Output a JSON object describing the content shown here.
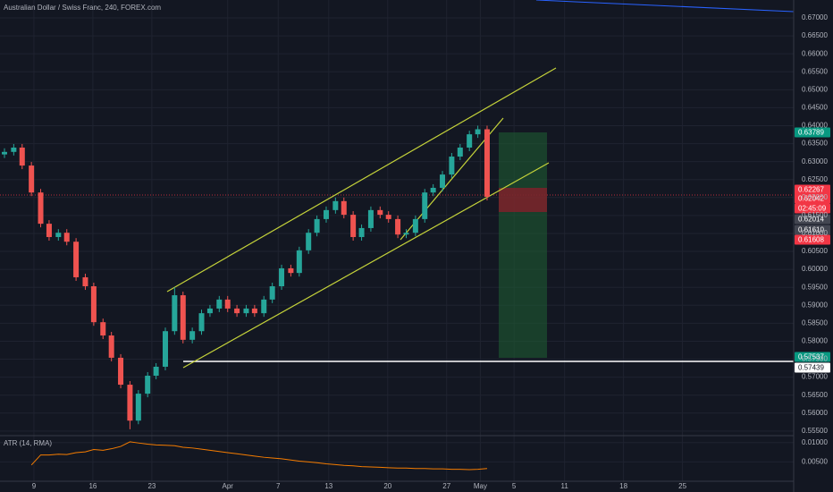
{
  "chart_data": {
    "type": "candlestick",
    "title": "Australian Dollar / Swiss Franc, 240, FOREX.com",
    "up_color": "#26a69a",
    "down_color": "#ef5350",
    "grid": true,
    "x": [
      5.5,
      6.6,
      7.6,
      8.7,
      9.8,
      10.8,
      11.9,
      12.9,
      14.0,
      15.1,
      16.1,
      17.2,
      18.2,
      19.3,
      20.4,
      21.4,
      22.5,
      23.5,
      24.6,
      25.7,
      26.7,
      27.8,
      28.9,
      29.9,
      31.0,
      32.0,
      33.1,
      34.2,
      35.2,
      36.3,
      37.3,
      38.4,
      39.5,
      40.5,
      41.6,
      42.6,
      43.7,
      44.8,
      45.8,
      46.9,
      47.9,
      49.0,
      50.1,
      51.1,
      52.2,
      53.2,
      54.3,
      55.4,
      56.4,
      57.5,
      58.6,
      59.6,
      60.7,
      61.7,
      62.8
    ],
    "open": [
      0.632,
      0.6327,
      0.6339,
      0.6289,
      0.6214,
      0.6127,
      0.609,
      0.6102,
      0.6077,
      0.5978,
      0.5953,
      0.5853,
      0.5816,
      0.5754,
      0.5679,
      0.5579,
      0.5654,
      0.5704,
      0.5729,
      0.5828,
      0.5928,
      0.5804,
      0.5828,
      0.5878,
      0.5891,
      0.5916,
      0.5891,
      0.5878,
      0.5891,
      0.5878,
      0.5916,
      0.5953,
      0.6003,
      0.599,
      0.6053,
      0.6102,
      0.614,
      0.6165,
      0.619,
      0.6152,
      0.609,
      0.6115,
      0.6165,
      0.6152,
      0.614,
      0.6097,
      0.6102,
      0.614,
      0.6214,
      0.6227,
      0.6264,
      0.6314,
      0.6339,
      0.6376,
      0.639
    ],
    "high": [
      0.6337,
      0.6349,
      0.6349,
      0.6299,
      0.6224,
      0.6137,
      0.6112,
      0.6112,
      0.6087,
      0.5988,
      0.5963,
      0.5863,
      0.5826,
      0.5764,
      0.5689,
      0.5664,
      0.5714,
      0.5739,
      0.5838,
      0.595,
      0.5938,
      0.5838,
      0.5888,
      0.5901,
      0.5926,
      0.5926,
      0.5901,
      0.5901,
      0.5901,
      0.5926,
      0.5963,
      0.6013,
      0.6013,
      0.6063,
      0.6112,
      0.615,
      0.6175,
      0.62,
      0.62,
      0.6162,
      0.6125,
      0.6175,
      0.6175,
      0.6162,
      0.615,
      0.6112,
      0.615,
      0.6224,
      0.6237,
      0.6274,
      0.6324,
      0.6349,
      0.6386,
      0.64,
      0.64
    ],
    "low": [
      0.631,
      0.6317,
      0.6279,
      0.6204,
      0.6117,
      0.608,
      0.608,
      0.6067,
      0.5968,
      0.5943,
      0.5843,
      0.5806,
      0.5744,
      0.5669,
      0.5555,
      0.5569,
      0.5644,
      0.5694,
      0.5719,
      0.5818,
      0.5794,
      0.5794,
      0.5818,
      0.5868,
      0.5881,
      0.5881,
      0.5868,
      0.5868,
      0.5868,
      0.5868,
      0.5906,
      0.5943,
      0.598,
      0.598,
      0.6043,
      0.6092,
      0.613,
      0.6155,
      0.6142,
      0.608,
      0.608,
      0.6105,
      0.6142,
      0.613,
      0.6087,
      0.6087,
      0.6092,
      0.613,
      0.6204,
      0.6217,
      0.6254,
      0.6304,
      0.6329,
      0.6366,
      0.6192
    ],
    "close": [
      0.6327,
      0.6339,
      0.6289,
      0.6214,
      0.6127,
      0.609,
      0.6102,
      0.6077,
      0.5978,
      0.5953,
      0.5853,
      0.5816,
      0.5754,
      0.5679,
      0.5579,
      0.5654,
      0.5704,
      0.5729,
      0.5828,
      0.5928,
      0.5804,
      0.5828,
      0.5878,
      0.5891,
      0.5916,
      0.5891,
      0.5878,
      0.5891,
      0.5878,
      0.5916,
      0.5953,
      0.6003,
      0.599,
      0.6053,
      0.6102,
      0.614,
      0.6165,
      0.619,
      0.6152,
      0.609,
      0.6115,
      0.6165,
      0.6152,
      0.614,
      0.6097,
      0.6102,
      0.614,
      0.6214,
      0.6227,
      0.6264,
      0.6314,
      0.6339,
      0.6376,
      0.639,
      0.6202
    ],
    "xlim": [
      4.97,
      99.2
    ],
    "xticks": [
      9,
      16,
      23,
      {
        "value": 32,
        "label": "Apr"
      },
      {
        "value": 38,
        "label": "7"
      },
      {
        "value": 44,
        "label": "13"
      },
      {
        "value": 51,
        "label": "20"
      },
      {
        "value": 58,
        "label": "27"
      },
      {
        "value": 62,
        "label": "May"
      },
      {
        "value": 66,
        "label": "5"
      },
      {
        "value": 72,
        "label": "11"
      },
      {
        "value": 79,
        "label": "18"
      },
      {
        "value": 86,
        "label": "25"
      }
    ],
    "ylim": [
      0.55372,
      0.67498
    ],
    "yticks": [
      {
        "value": 0.555,
        "label": "0.55500"
      },
      {
        "value": 0.56,
        "label": "0.56000"
      },
      {
        "value": 0.565,
        "label": "0.56500"
      },
      {
        "value": 0.57,
        "label": "0.57000"
      },
      {
        "value": 0.575,
        "label": "0.57500"
      },
      {
        "value": 0.58,
        "label": "0.58000"
      },
      {
        "value": 0.585,
        "label": "0.58500"
      },
      {
        "value": 0.59,
        "label": "0.59000"
      },
      {
        "value": 0.595,
        "label": "0.59500"
      },
      {
        "value": 0.6,
        "label": "0.60000"
      },
      {
        "value": 0.605,
        "label": "0.60500"
      },
      {
        "value": 0.61,
        "label": "0.61000"
      },
      {
        "value": 0.615,
        "label": "0.61500"
      },
      {
        "value": 0.62,
        "label": "0.62000"
      },
      {
        "value": 0.625,
        "label": "0.62500"
      },
      {
        "value": 0.63,
        "label": "0.63000"
      },
      {
        "value": 0.635,
        "label": "0.63500"
      },
      {
        "value": 0.64,
        "label": "0.64000"
      },
      {
        "value": 0.645,
        "label": "0.64500"
      },
      {
        "value": 0.65,
        "label": "0.65000"
      },
      {
        "value": 0.655,
        "label": "0.65500"
      },
      {
        "value": 0.66,
        "label": "0.66000"
      },
      {
        "value": 0.665,
        "label": "0.66500"
      },
      {
        "value": 0.67,
        "label": "0.67000"
      }
    ],
    "price_tags": [
      {
        "label": "0.63789",
        "color": "#089981"
      },
      {
        "label": "0.62267",
        "color": "#f23645"
      },
      {
        "label": "0.62042",
        "color": "#f23645"
      },
      {
        "label": "02:45:09",
        "color": "#f23645"
      },
      {
        "label": "0.62014",
        "color": "#434651"
      },
      {
        "label": "0.61610",
        "color": "#434651"
      },
      {
        "label": "0.61608",
        "color": "#f23645"
      },
      {
        "label": "0.57537",
        "color": "#089981"
      },
      {
        "label": "0.57439",
        "color": "#ffffff"
      }
    ],
    "atr": {
      "name": "ATR (14, RMA)",
      "color": "#f57c00",
      "values": [
        null,
        null,
        null,
        0.0042,
        0.0068,
        0.0068,
        0.007,
        0.0069,
        0.0074,
        0.0076,
        0.0082,
        0.008,
        0.0084,
        0.009,
        0.0102,
        0.0099,
        0.0096,
        0.0094,
        0.0093,
        0.0092,
        0.0088,
        0.0086,
        0.0083,
        0.008,
        0.0077,
        0.0074,
        0.0071,
        0.0068,
        0.0065,
        0.0062,
        0.006,
        0.0058,
        0.0055,
        0.0052,
        0.005,
        0.0048,
        0.0045,
        0.0043,
        0.0041,
        0.004,
        0.0038,
        0.0037,
        0.0036,
        0.0035,
        0.0034,
        0.0034,
        0.0033,
        0.0033,
        0.0032,
        0.0032,
        0.0031,
        0.0031,
        0.003,
        0.0031,
        0.0033
      ],
      "ylim": [
        0,
        0.0111
      ],
      "yticks": [
        {
          "value": 0.005,
          "label": "0.00500"
        },
        {
          "value": 0.01,
          "label": "0.01000"
        }
      ]
    }
  }
}
